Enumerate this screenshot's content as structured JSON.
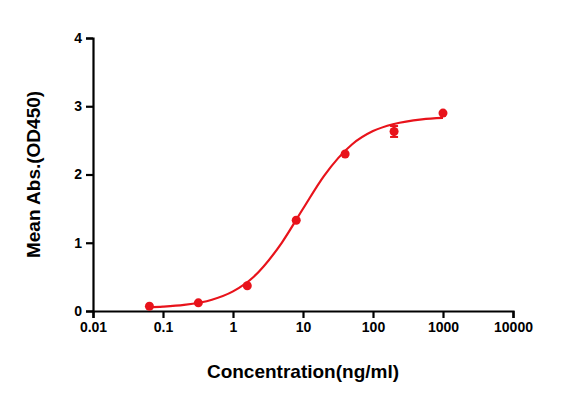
{
  "chart_data": {
    "type": "scatter",
    "x_label": "Concentration(ng/ml)",
    "y_label": "Mean Abs.(OD450)",
    "log": "x",
    "grid": false,
    "xlim": [
      0.01,
      10000
    ],
    "xticks": [
      0.01,
      0.1,
      1,
      10,
      100,
      1000,
      10000
    ],
    "ylim": [
      0,
      4
    ],
    "yticks": [
      0,
      1,
      2,
      3,
      4
    ],
    "series": [
      {
        "type": "scatter",
        "color": "#e8131b",
        "marker": "circle",
        "x": [
          0.064,
          0.32,
          1.6,
          8,
          40,
          200,
          1000
        ],
        "values": [
          0.07,
          0.12,
          0.37,
          1.33,
          2.3,
          2.63,
          2.9
        ],
        "errors": [
          null,
          null,
          null,
          null,
          null,
          0.08,
          null
        ]
      },
      {
        "type": "line",
        "color": "#e8131b",
        "line_style": "solid",
        "x": [
          0.06,
          0.1,
          0.2,
          0.5,
          1,
          2,
          5,
          10,
          20,
          50,
          100,
          200,
          500,
          1000
        ],
        "values": [
          0.054,
          0.064,
          0.089,
          0.165,
          0.287,
          0.506,
          1.003,
          1.498,
          1.981,
          2.44,
          2.636,
          2.74,
          2.808,
          2.83
        ]
      }
    ]
  }
}
